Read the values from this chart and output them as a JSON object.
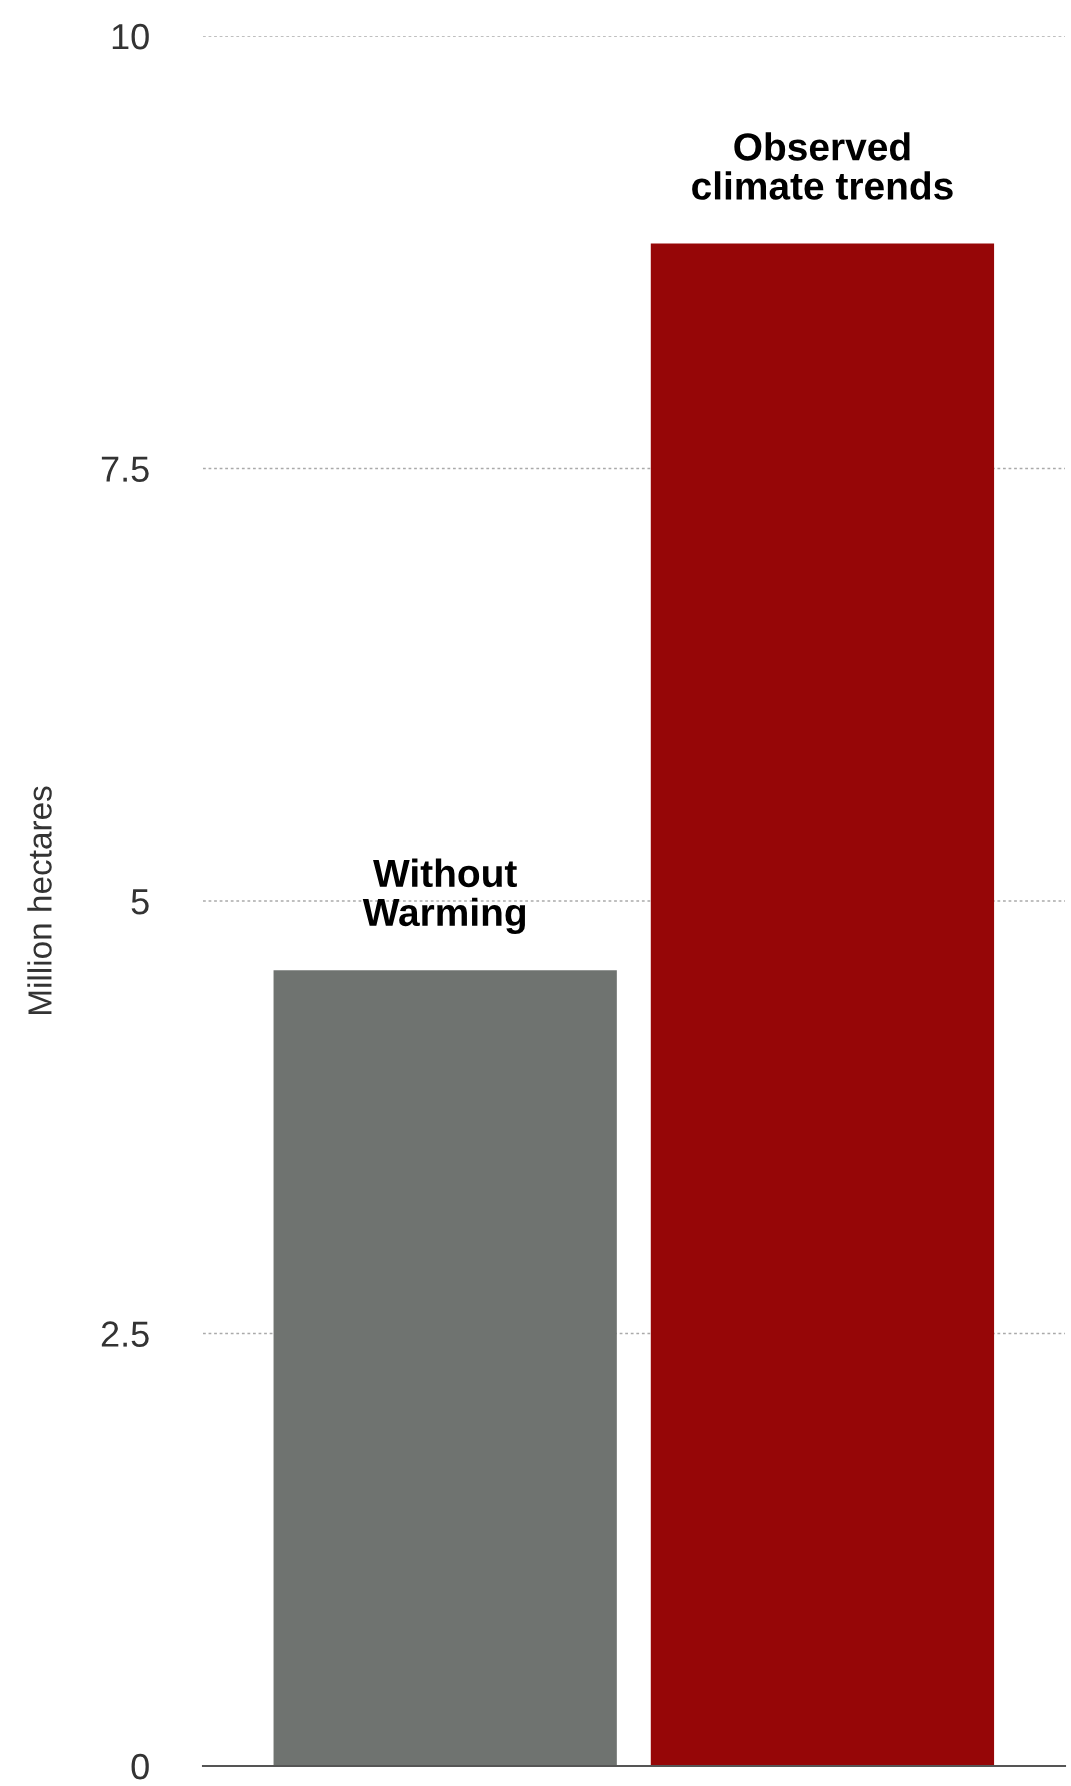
{
  "chart_data": {
    "type": "bar",
    "ylabel": "Million hectares",
    "categories": [
      "Without\nWarming",
      "Observed\nclimate trends"
    ],
    "values": [
      4.6,
      8.8
    ],
    "colors": [
      "#6f7370",
      "#960607"
    ],
    "ylim": [
      0,
      10
    ],
    "yticks": [
      0,
      2.5,
      5,
      7.5,
      10
    ],
    "grid": "y",
    "tick_labels": "y"
  }
}
